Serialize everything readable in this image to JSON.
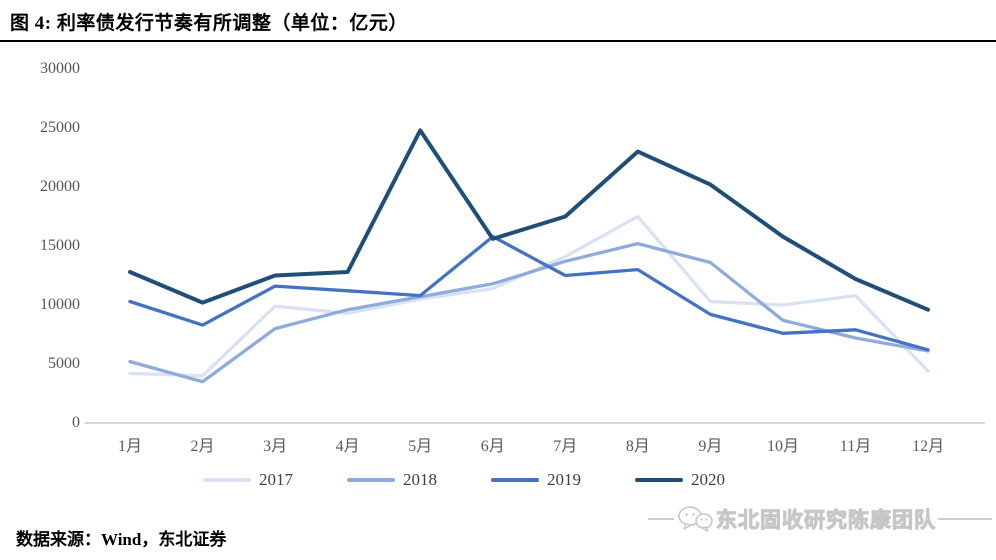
{
  "header": {
    "title": "图 4: 利率债发行节奏有所调整（单位：亿元）"
  },
  "chart_data": {
    "type": "line",
    "title": "利率债发行节奏有所调整",
    "unit": "亿元",
    "xlabel": "",
    "ylabel": "",
    "ylim": [
      0,
      30000
    ],
    "grid": false,
    "legend_position": "bottom",
    "categories": [
      "1月",
      "2月",
      "3月",
      "4月",
      "5月",
      "6月",
      "7月",
      "8月",
      "9月",
      "10月",
      "11月",
      "12月"
    ],
    "y_tick_labels": [
      "30000",
      "25000",
      "20000",
      "15000",
      "10000",
      "5000",
      "0"
    ],
    "series": [
      {
        "name": "2017",
        "color": "#d9e2f3",
        "values": [
          4200,
          4000,
          9900,
          9300,
          10500,
          11400,
          14100,
          17500,
          10300,
          10000,
          10800,
          4400
        ]
      },
      {
        "name": "2018",
        "color": "#8faadc",
        "values": [
          5200,
          3500,
          8000,
          9600,
          10700,
          11800,
          13700,
          15200,
          13600,
          8700,
          7200,
          6100
        ]
      },
      {
        "name": "2019",
        "color": "#4472c4",
        "values": [
          10300,
          8300,
          11600,
          11200,
          10800,
          15800,
          12500,
          13000,
          9200,
          7600,
          7900,
          6200
        ]
      },
      {
        "name": "2020",
        "color": "#1f4e79",
        "values": [
          12800,
          10200,
          12500,
          12800,
          24800,
          15600,
          17500,
          23000,
          20200,
          15800,
          12200,
          9600
        ]
      }
    ]
  },
  "footer": {
    "source": "数据来源：Wind，东北证券"
  },
  "watermark": {
    "text": "东北固收研究陈康团队",
    "icon": "wechat-chat-bubbles-icon"
  }
}
